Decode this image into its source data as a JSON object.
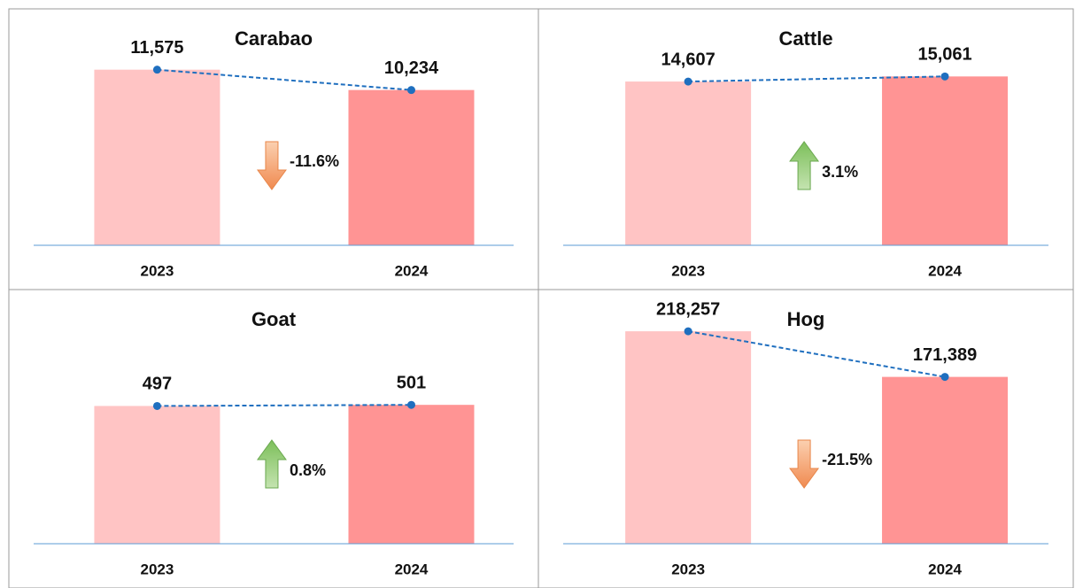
{
  "chart_data": [
    {
      "type": "bar",
      "title": "Carabao",
      "categories": [
        "2023",
        "2024"
      ],
      "values": [
        11575,
        10234
      ],
      "value_labels": [
        "11,575",
        "10,234"
      ],
      "annotation": "-11.6%",
      "colors": [
        "#ffc4c4",
        "#ff9494"
      ],
      "ylim": [
        0,
        15000
      ]
    },
    {
      "type": "bar",
      "title": "Cattle",
      "categories": [
        "2023",
        "2024"
      ],
      "values": [
        14607,
        15061
      ],
      "value_labels": [
        "14,607",
        "15,061"
      ],
      "annotation": "3.1%",
      "colors": [
        "#ffc4c4",
        "#ff9494"
      ],
      "ylim": [
        0,
        20300
      ]
    },
    {
      "type": "bar",
      "title": "Goat",
      "categories": [
        "2023",
        "2024"
      ],
      "values": [
        497,
        501
      ],
      "value_labels": [
        "497",
        "501"
      ],
      "annotation": "0.8%",
      "colors": [
        "#ffc4c4",
        "#ff9494"
      ],
      "ylim": [
        0,
        885
      ]
    },
    {
      "type": "bar",
      "title": "Hog",
      "categories": [
        "2023",
        "2024"
      ],
      "values": [
        218257,
        171389
      ],
      "value_labels": [
        "218,257",
        "171,389"
      ],
      "annotation": "-21.5%",
      "colors": [
        "#ffc4c4",
        "#ff9494"
      ],
      "ylim": [
        0,
        252000
      ]
    }
  ]
}
